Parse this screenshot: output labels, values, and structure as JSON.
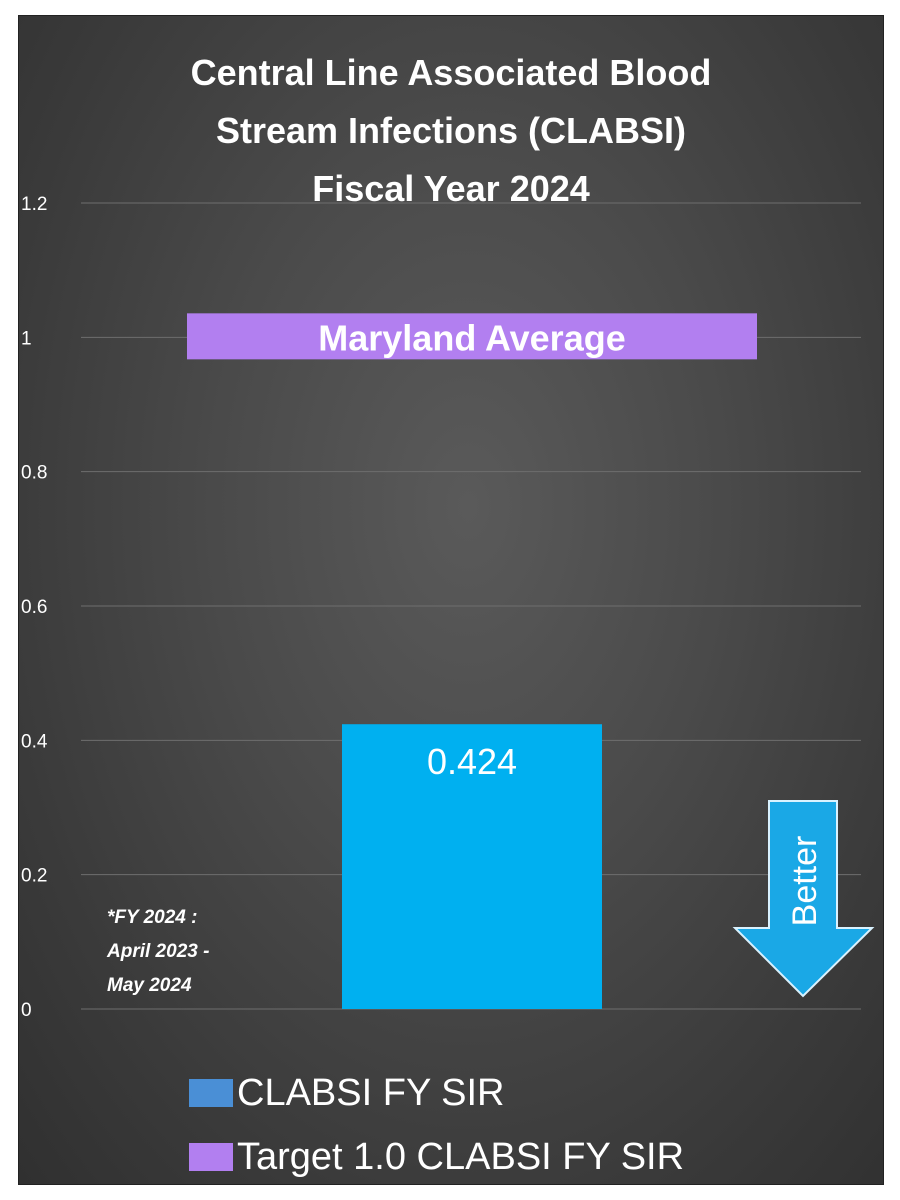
{
  "chart_data": {
    "type": "bar",
    "title_lines": [
      "Central Line Associated Blood",
      "Stream Infections (CLABSI)",
      "Fiscal Year 2024"
    ],
    "ylim": [
      0,
      1.2
    ],
    "yticks": [
      "0",
      "0.2",
      "0.4",
      "0.6",
      "0.8",
      "1",
      "1.2"
    ],
    "ytick_values": [
      0,
      0.2,
      0.4,
      0.6,
      0.8,
      1.0,
      1.2
    ],
    "grid": true,
    "series": [
      {
        "name": "CLABSI FY SIR",
        "values": [
          0.424
        ],
        "data_label": "0.424",
        "color": "#00b0f0"
      }
    ],
    "target": {
      "name": "Target 1.0 CLABSI FY SIR",
      "value": 1.0,
      "label": "Maryland Average",
      "color": "#b27ff0"
    },
    "annotation_arrow": "Better",
    "footnote_lines": [
      "*FY 2024 :",
      "April 2023 -",
      "May 2024"
    ],
    "legend_position": "bottom",
    "legend_colors": [
      "#4a8fd6",
      "#b27ff0"
    ]
  }
}
